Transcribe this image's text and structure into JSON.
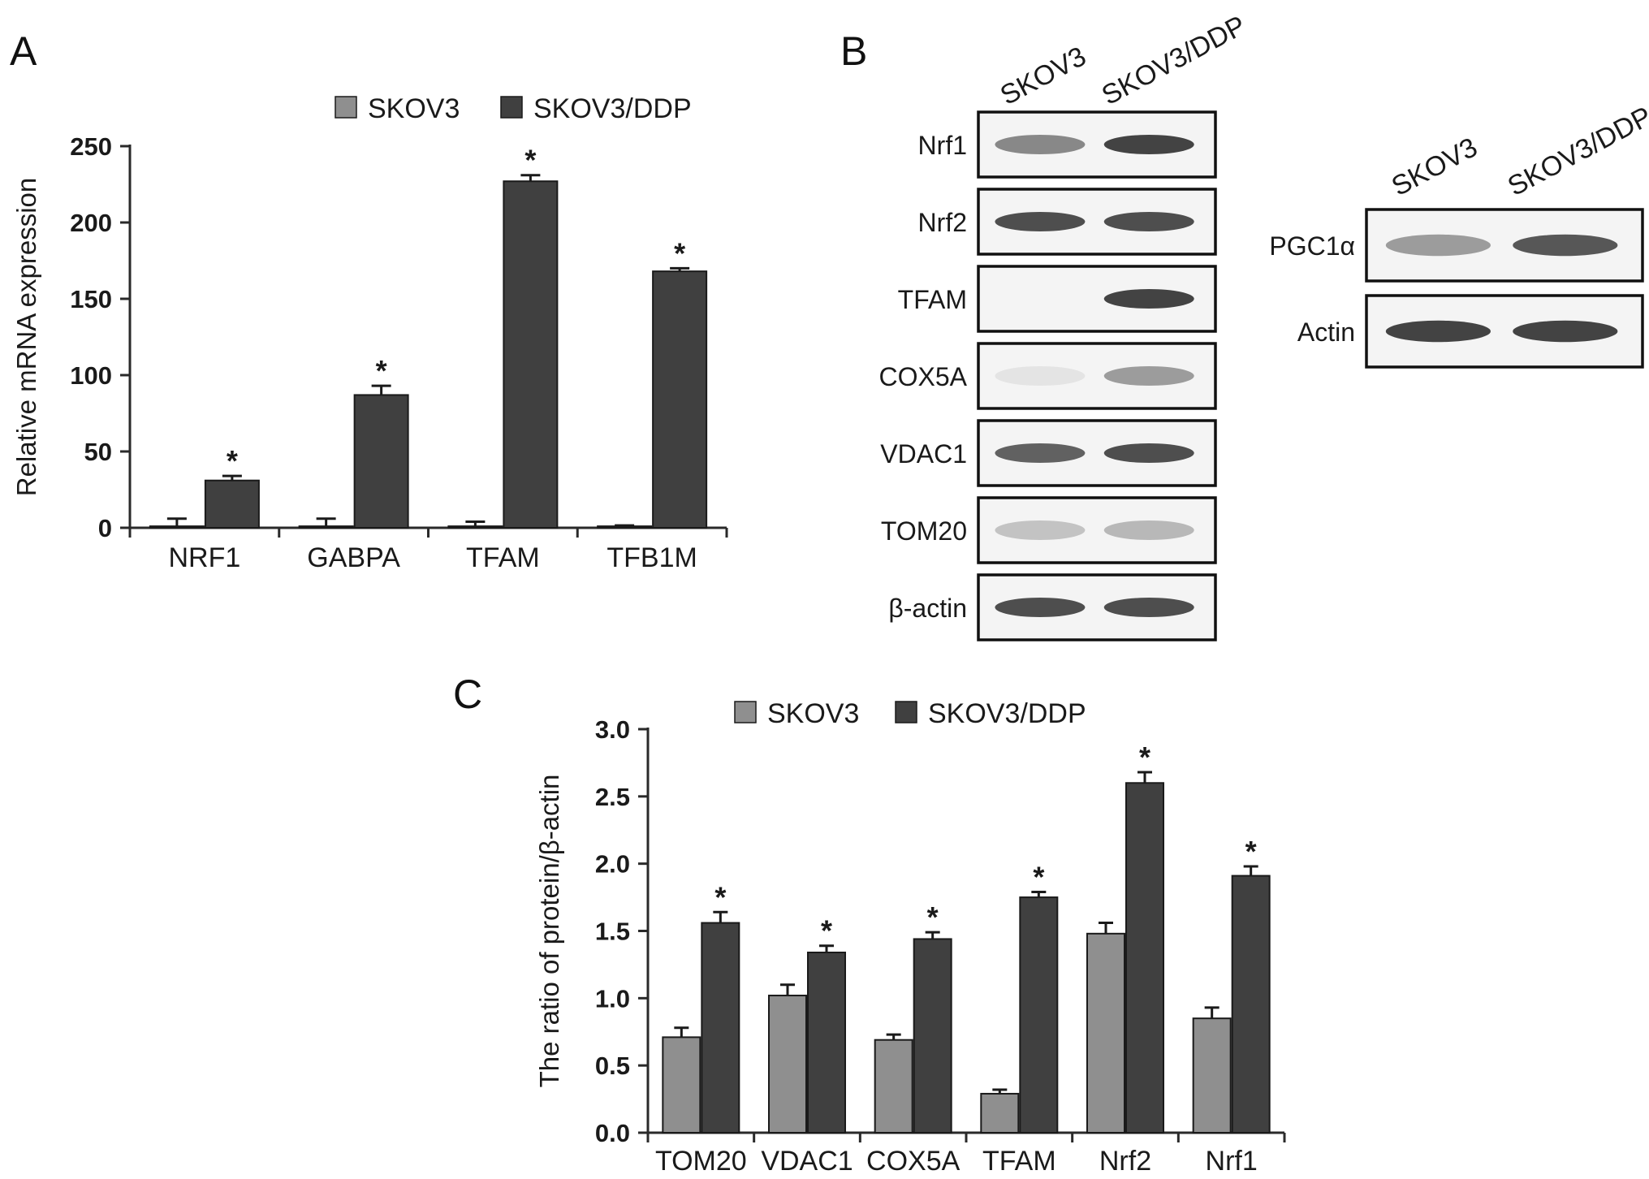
{
  "colors": {
    "skov3": "#8f8f8f",
    "skov3_ddp": "#404040",
    "axis": "#2a2a2a",
    "band": "#303030"
  },
  "panels": {
    "a": "A",
    "b": "B",
    "c": "C"
  },
  "chart_data": [
    {
      "id": "A",
      "type": "bar",
      "title": "",
      "ylabel": "Relative mRNA expression",
      "xlabel": "",
      "ylim": [
        0,
        250
      ],
      "yticks": [
        0,
        50,
        100,
        150,
        200,
        250
      ],
      "categories": [
        "NRF1",
        "GABPA",
        "TFAM",
        "TFB1M"
      ],
      "series": [
        {
          "name": "SKOV3",
          "values": [
            1,
            1,
            1,
            1
          ],
          "errors": [
            5,
            5,
            3,
            0.5
          ]
        },
        {
          "name": "SKOV3/DDP",
          "values": [
            31,
            87,
            227,
            168
          ],
          "errors": [
            3,
            6,
            4,
            2
          ]
        }
      ],
      "significance": [
        "*",
        "*",
        "*",
        "*"
      ],
      "legend": "top"
    },
    {
      "id": "C",
      "type": "bar",
      "title": "",
      "ylabel": "The ratio of protein/β-actin",
      "xlabel": "",
      "ylim": [
        0,
        3.0
      ],
      "yticks": [
        "0.0",
        "0.5",
        "1.0",
        "1.5",
        "2.0",
        "2.5",
        "3.0"
      ],
      "categories": [
        "TOM20",
        "VDAC1",
        "COX5A",
        "TFAM",
        "Nrf2",
        "Nrf1"
      ],
      "series": [
        {
          "name": "SKOV3",
          "values": [
            0.71,
            1.02,
            0.69,
            0.29,
            1.48,
            0.85
          ],
          "errors": [
            0.07,
            0.08,
            0.04,
            0.03,
            0.08,
            0.08
          ]
        },
        {
          "name": "SKOV3/DDP",
          "values": [
            1.56,
            1.34,
            1.44,
            1.75,
            2.6,
            1.91
          ],
          "errors": [
            0.08,
            0.05,
            0.05,
            0.04,
            0.08,
            0.07
          ]
        }
      ],
      "significance": [
        "*",
        "*",
        "*",
        "*",
        "*",
        "*"
      ],
      "legend": "top"
    }
  ],
  "blot_left": {
    "lanes": [
      "SKOV3",
      "SKOV3/DDP"
    ],
    "rows": [
      {
        "label": "Nrf1",
        "intensity": [
          0.55,
          0.9
        ]
      },
      {
        "label": "Nrf2",
        "intensity": [
          0.85,
          0.85
        ]
      },
      {
        "label": "TFAM",
        "intensity": [
          0.0,
          0.9
        ]
      },
      {
        "label": "COX5A",
        "intensity": [
          0.08,
          0.45
        ]
      },
      {
        "label": "VDAC1",
        "intensity": [
          0.75,
          0.85
        ]
      },
      {
        "label": "TOM20",
        "intensity": [
          0.25,
          0.3
        ]
      },
      {
        "label": "β-actin",
        "intensity": [
          0.85,
          0.85
        ]
      }
    ]
  },
  "blot_right": {
    "lanes": [
      "SKOV3",
      "SKOV3/DDP"
    ],
    "rows": [
      {
        "label": "PGC1α",
        "intensity": [
          0.45,
          0.8
        ]
      },
      {
        "label": "Actin",
        "intensity": [
          0.9,
          0.9
        ]
      }
    ]
  }
}
